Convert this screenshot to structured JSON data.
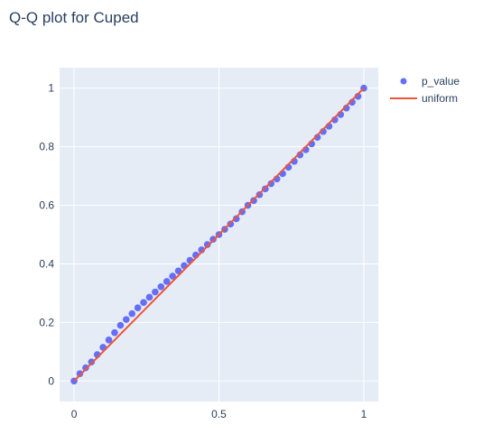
{
  "chart_data": {
    "type": "scatter",
    "title": "Q-Q plot for Cuped",
    "xlabel": "",
    "ylabel": "",
    "xlim": [
      -0.05,
      1.05
    ],
    "ylim": [
      -0.07,
      1.07
    ],
    "x_ticks": [
      0,
      0.5,
      1
    ],
    "x_tick_labels": [
      "0",
      "0.5",
      "1"
    ],
    "y_ticks": [
      0,
      0.2,
      0.4,
      0.6,
      0.8,
      1
    ],
    "y_tick_labels": [
      "0",
      "0.2",
      "0.4",
      "0.6",
      "0.8",
      "1"
    ],
    "grid": true,
    "legend_position": "top-right",
    "series": [
      {
        "name": "p_value",
        "mode": "markers",
        "color": "#636efa",
        "x": [
          0,
          0.02,
          0.04,
          0.06,
          0.08,
          0.1,
          0.12,
          0.14,
          0.16,
          0.18,
          0.2,
          0.22,
          0.24,
          0.26,
          0.28,
          0.3,
          0.32,
          0.34,
          0.36,
          0.38,
          0.4,
          0.42,
          0.44,
          0.46,
          0.48,
          0.5,
          0.52,
          0.54,
          0.56,
          0.58,
          0.6,
          0.62,
          0.64,
          0.66,
          0.68,
          0.7,
          0.72,
          0.74,
          0.76,
          0.78,
          0.8,
          0.82,
          0.84,
          0.86,
          0.88,
          0.9,
          0.92,
          0.94,
          0.96,
          0.98,
          1.0
        ],
        "y": [
          0,
          0.025,
          0.045,
          0.065,
          0.09,
          0.115,
          0.14,
          0.165,
          0.19,
          0.21,
          0.23,
          0.25,
          0.268,
          0.286,
          0.304,
          0.322,
          0.34,
          0.358,
          0.376,
          0.394,
          0.412,
          0.43,
          0.448,
          0.466,
          0.484,
          0.5,
          0.518,
          0.536,
          0.554,
          0.578,
          0.6,
          0.616,
          0.636,
          0.656,
          0.674,
          0.69,
          0.708,
          0.73,
          0.75,
          0.772,
          0.79,
          0.81,
          0.832,
          0.852,
          0.87,
          0.892,
          0.91,
          0.932,
          0.952,
          0.972,
          1.0
        ]
      },
      {
        "name": "uniform",
        "mode": "lines",
        "color": "#ef553b",
        "x": [
          0,
          1
        ],
        "y": [
          0,
          1
        ]
      }
    ]
  }
}
